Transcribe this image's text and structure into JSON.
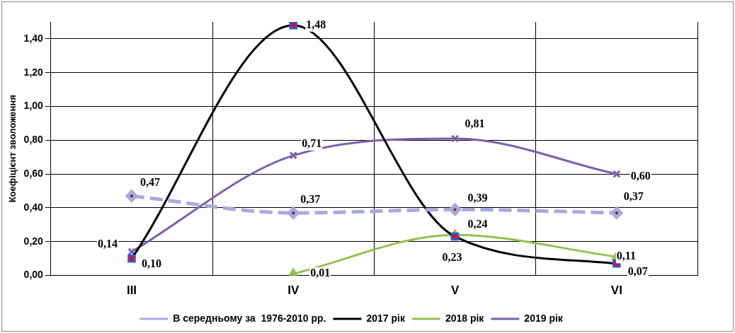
{
  "chart_data": {
    "type": "line",
    "ylabel": "Коефіцієнт зволоження",
    "categories": [
      "III",
      "IV",
      "V",
      "VI"
    ],
    "ylim": [
      0,
      1.5
    ],
    "yticks": [
      {
        "value": 0,
        "label": "0,00"
      },
      {
        "value": 0.2,
        "label": "0,20"
      },
      {
        "value": 0.4,
        "label": "0,40"
      },
      {
        "value": 0.6,
        "label": "0,60"
      },
      {
        "value": 0.8,
        "label": "0,80"
      },
      {
        "value": 1.0,
        "label": "1,00"
      },
      {
        "value": 1.2,
        "label": "1,20"
      },
      {
        "value": 1.4,
        "label": "1,40"
      }
    ],
    "grid": true,
    "legend": "bottom",
    "series": [
      {
        "name": "В середньому за  1976-2010 рр.",
        "color": "#a9a9dc",
        "marker": "diamond",
        "line_style": "dashed",
        "values": [
          0.47,
          0.37,
          0.39,
          0.37
        ],
        "value_labels": [
          "0,47",
          "0,37",
          "0,39",
          "0,37"
        ]
      },
      {
        "name": "2017 рік",
        "color": "#000000",
        "marker": "square",
        "line_style": "solid",
        "values": [
          0.1,
          1.48,
          0.23,
          0.07
        ],
        "value_labels": [
          "0,10",
          "1,48",
          "0,23",
          "0,07"
        ]
      },
      {
        "name": "2018 рік",
        "color": "#92c050",
        "marker": "triangle",
        "line_style": "solid",
        "values": [
          null,
          0.01,
          0.24,
          0.11
        ],
        "value_labels": [
          null,
          "0,01",
          "0,24",
          "0,11"
        ]
      },
      {
        "name": "2019 рік",
        "color": "#7f5fa8",
        "marker": "cross",
        "line_style": "solid",
        "values": [
          0.14,
          0.71,
          0.81,
          0.6
        ],
        "value_labels": [
          "0,14",
          "0,71",
          "0,81",
          "0,60"
        ]
      }
    ]
  }
}
